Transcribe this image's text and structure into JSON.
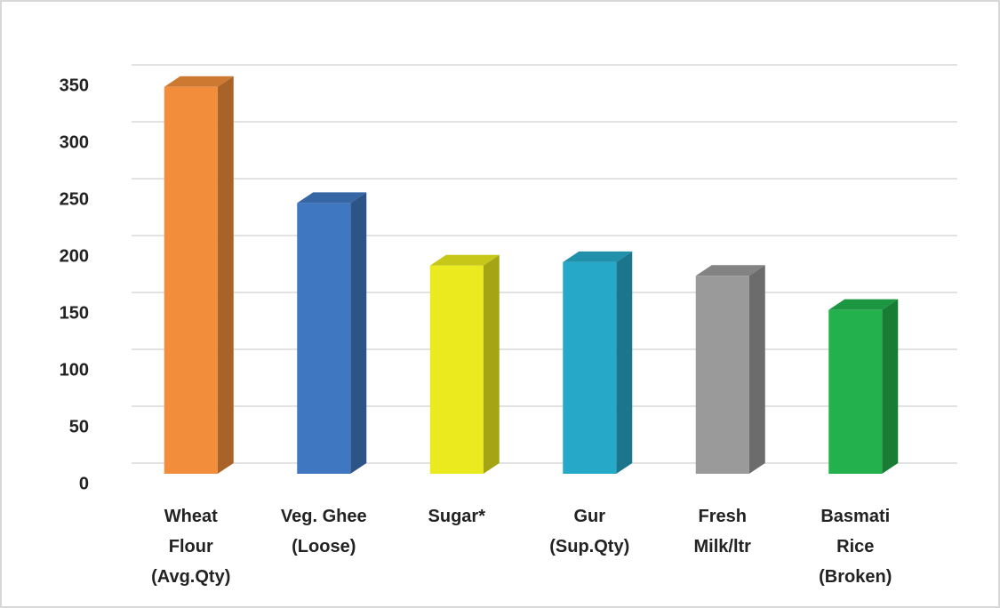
{
  "chart_data": {
    "type": "bar3d",
    "categories": [
      [
        "Wheat",
        "Flour",
        "(Avg.Qty)"
      ],
      [
        "Veg. Ghee",
        "(Loose)"
      ],
      [
        "Sugar*"
      ],
      [
        "Gur",
        "(Sup.Qty)"
      ],
      [
        "Fresh",
        "Milk/ltr"
      ],
      [
        "Basmati",
        "Rice",
        "(Broken)"
      ]
    ],
    "values": [
      340,
      238,
      183,
      186,
      174,
      144
    ],
    "colors": [
      "#f28e3b",
      "#3f78c1",
      "#eaea1e",
      "#26a9c9",
      "#9a9a9a",
      "#22b14c"
    ],
    "ylim": [
      0,
      350
    ],
    "yticks": [
      0,
      50,
      100,
      150,
      200,
      250,
      300,
      350
    ],
    "grid": true
  }
}
